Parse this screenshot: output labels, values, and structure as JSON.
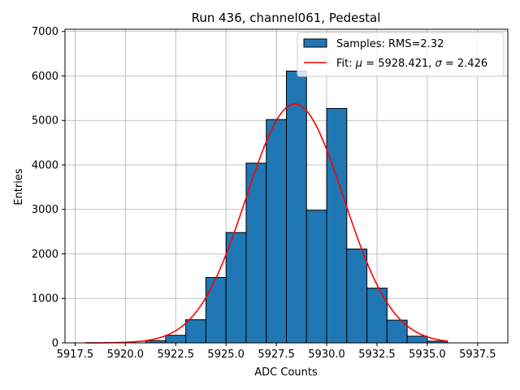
{
  "chart_data": {
    "type": "bar",
    "title": "Run 436, channel061, Pedestal",
    "xlabel": "ADC Counts",
    "ylabel": "Entries",
    "xlim": [
      5917.0,
      5939.0
    ],
    "ylim": [
      0,
      7050
    ],
    "x_ticks": [
      5917.5,
      5920.0,
      5922.5,
      5925.0,
      5927.5,
      5930.0,
      5932.5,
      5935.0,
      5937.5
    ],
    "x_tick_labels": [
      "5917.5",
      "5920.0",
      "5922.5",
      "5925.0",
      "5927.5",
      "5930.0",
      "5932.5",
      "5935.0",
      "5937.5"
    ],
    "y_ticks": [
      0,
      1000,
      2000,
      3000,
      4000,
      5000,
      6000,
      7000
    ],
    "y_tick_labels": [
      "0",
      "1000",
      "2000",
      "3000",
      "4000",
      "5000",
      "6000",
      "7000"
    ],
    "grid": true,
    "legend_position": "top-right",
    "bins": [
      {
        "left": 5918,
        "right": 5919,
        "count": 0
      },
      {
        "left": 5919,
        "right": 5920,
        "count": 0
      },
      {
        "left": 5920,
        "right": 5921,
        "count": 0
      },
      {
        "left": 5921,
        "right": 5922,
        "count": 50
      },
      {
        "left": 5922,
        "right": 5923,
        "count": 170
      },
      {
        "left": 5923,
        "right": 5924,
        "count": 520
      },
      {
        "left": 5924,
        "right": 5925,
        "count": 1470
      },
      {
        "left": 5925,
        "right": 5926,
        "count": 2480
      },
      {
        "left": 5926,
        "right": 5927,
        "count": 4040
      },
      {
        "left": 5927,
        "right": 5928,
        "count": 5020
      },
      {
        "left": 5928,
        "right": 5929,
        "count": 6110
      },
      {
        "left": 5929,
        "right": 5930,
        "count": 2980
      },
      {
        "left": 5930,
        "right": 5931,
        "count": 5270
      },
      {
        "left": 5931,
        "right": 5932,
        "count": 2110
      },
      {
        "left": 5932,
        "right": 5933,
        "count": 1230
      },
      {
        "left": 5933,
        "right": 5934,
        "count": 510
      },
      {
        "left": 5934,
        "right": 5935,
        "count": 150
      },
      {
        "left": 5935,
        "right": 5936,
        "count": 40
      }
    ],
    "series": [
      {
        "name": "Samples: RMS=2.32",
        "kind": "histogram",
        "color": "#1f77b4",
        "edge_color": "#000000"
      },
      {
        "name": "Fit: μ = 5928.421, σ = 2.426",
        "kind": "gaussian-fit",
        "color": "#ff0000",
        "mu": 5928.421,
        "sigma": 2.426,
        "amplitude": 5370,
        "x_range": [
          5918,
          5936
        ]
      }
    ]
  },
  "legend": {
    "hist_label": "Samples: RMS=2.32",
    "fit_label_prefix": "Fit: ",
    "fit_mu_symbol": "μ",
    "fit_mu_text": " = 5928.421, ",
    "fit_sigma_symbol": "σ",
    "fit_sigma_text": " = 2.426"
  },
  "colors": {
    "bar_fill": "#1f77b4",
    "bar_edge": "#000000",
    "fit_line": "#ff0000",
    "grid": "#b0b0b0",
    "axes": "#000000"
  }
}
